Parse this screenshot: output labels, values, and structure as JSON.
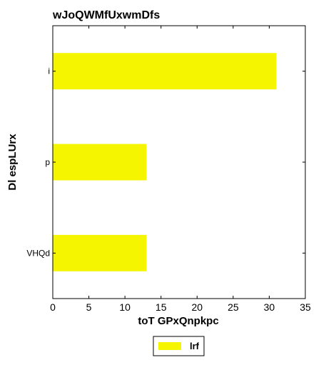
{
  "chart_data": {
    "type": "bar",
    "orientation": "horizontal",
    "title": "wJoQWMfUxwmDfs",
    "xlabel": "toT GPxQnpkpc",
    "ylabel": "Dl espLUrx",
    "categories": [
      "i",
      "p",
      "VHQd"
    ],
    "series": [
      {
        "name": "lrf",
        "values": [
          31,
          13,
          13
        ],
        "color": "#f5f500"
      }
    ],
    "xlim": [
      0,
      35
    ],
    "xticks": [
      "0",
      "5",
      "10",
      "15",
      "20",
      "25",
      "30",
      "35"
    ],
    "grid": false,
    "legend_position": "bottom-center"
  }
}
